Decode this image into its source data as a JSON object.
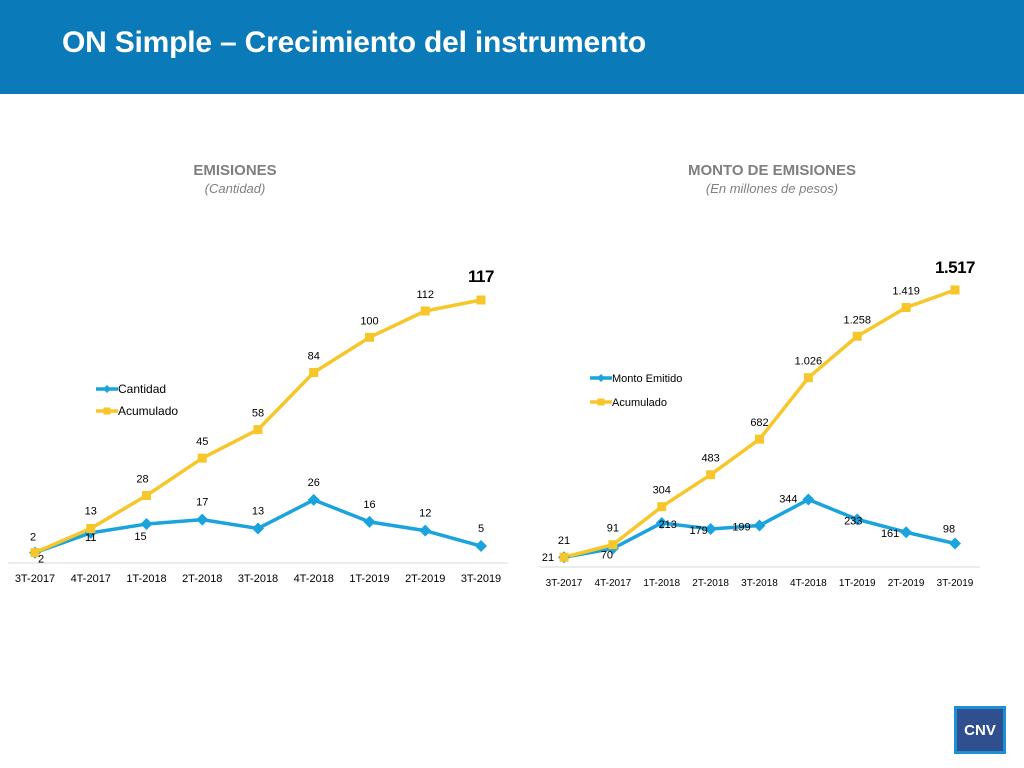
{
  "slide": {
    "title": "ON Simple – Crecimiento del instrumento",
    "logo_text": "CNV"
  },
  "colors": {
    "header": "#0a7bb8",
    "series_blue": "#1aa3dd",
    "series_yellow": "#f7c62b"
  },
  "chart_data": [
    {
      "type": "line",
      "title": "EMISIONES",
      "subtitle": "(Cantidad)",
      "categories": [
        "3T-2017",
        "4T-2017",
        "1T-2018",
        "2T-2018",
        "3T-2018",
        "4T-2018",
        "1T-2019",
        "2T-2019",
        "3T-2019"
      ],
      "series": [
        {
          "name": "Cantidad",
          "color": "#1aa3dd",
          "marker": "diamond",
          "values": [
            2,
            11,
            15,
            17,
            13,
            26,
            16,
            12,
            5
          ],
          "labels": [
            "2",
            "11",
            "15",
            "17",
            "13",
            "26",
            "16",
            "12",
            "5"
          ]
        },
        {
          "name": "Acumulado",
          "color": "#f7c62b",
          "marker": "square",
          "values": [
            2,
            13,
            28,
            45,
            58,
            84,
            100,
            112,
            117
          ],
          "labels": [
            "2",
            "13",
            "28",
            "45",
            "58",
            "84",
            "100",
            "112",
            "117"
          ]
        }
      ],
      "ylim": [
        0,
        125
      ],
      "legend": "left",
      "grid": false
    },
    {
      "type": "line",
      "title": "MONTO DE EMISIONES",
      "subtitle": "(En millones de pesos)",
      "categories": [
        "3T-2017",
        "4T-2017",
        "1T-2018",
        "2T-2018",
        "3T-2018",
        "4T-2018",
        "1T-2019",
        "2T-2019",
        "3T-2019"
      ],
      "series": [
        {
          "name": "Monto Emitido",
          "color": "#1aa3dd",
          "marker": "diamond",
          "values": [
            21,
            70,
            213,
            179,
            199,
            344,
            233,
            161,
            98
          ],
          "labels": [
            "21",
            "70",
            "213",
            "179",
            "199",
            "344",
            "233",
            "161",
            "98"
          ]
        },
        {
          "name": "Acumulado",
          "color": "#f7c62b",
          "marker": "square",
          "values": [
            21,
            91,
            304,
            483,
            682,
            1026,
            1258,
            1419,
            1517
          ],
          "labels": [
            "21",
            "91",
            "304",
            "483",
            "682",
            "1.026",
            "1.258",
            "1.419",
            "1.517"
          ]
        }
      ],
      "ylim": [
        0,
        1580
      ],
      "legend": "left",
      "grid": false
    }
  ]
}
